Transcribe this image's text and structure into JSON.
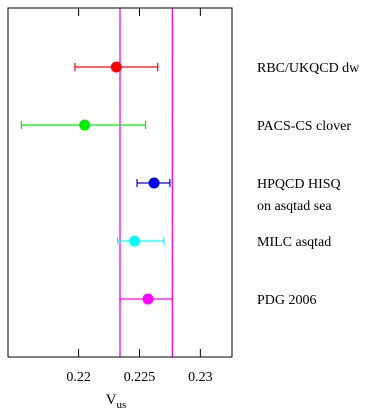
{
  "chart_data": {
    "type": "scatter",
    "title": "",
    "xlabel_main": "V",
    "xlabel_sub": "us",
    "xlim": [
      0.2142,
      0.2326
    ],
    "xticks": [
      0.22,
      0.225,
      0.23
    ],
    "xtick_labels": [
      "0.22",
      "0.225",
      "0.23"
    ],
    "grid": false,
    "reference_band": {
      "low": 0.2234,
      "high": 0.2277,
      "color": "#ff00ff"
    },
    "series": [
      {
        "name": "RBC/UKQCD dw",
        "name_lines": [
          "RBC/UKQCD dw"
        ],
        "value": 0.2231,
        "err_low": 0.2197,
        "err_high": 0.2265,
        "color": "#ff0000"
      },
      {
        "name": "PACS-CS clover",
        "name_lines": [
          "PACS-CS clover"
        ],
        "value": 0.2205,
        "err_low": 0.2153,
        "err_high": 0.2255,
        "color": "#00ee00"
      },
      {
        "name": "HPQCD HISQ on asqtad sea",
        "name_lines": [
          "HPQCD HISQ",
          "on asqtad sea"
        ],
        "value": 0.2262,
        "err_low": 0.2248,
        "err_high": 0.2275,
        "color": "#0000ee"
      },
      {
        "name": "MILC asqtad",
        "name_lines": [
          "MILC asqtad"
        ],
        "value": 0.2246,
        "err_low": 0.2232,
        "err_high": 0.227,
        "color": "#00ffff"
      },
      {
        "name": "PDG 2006",
        "name_lines": [
          "PDG 2006"
        ],
        "value": 0.2257,
        "err_low": 0.2234,
        "err_high": 0.2277,
        "color": "#ff00ff"
      }
    ]
  }
}
